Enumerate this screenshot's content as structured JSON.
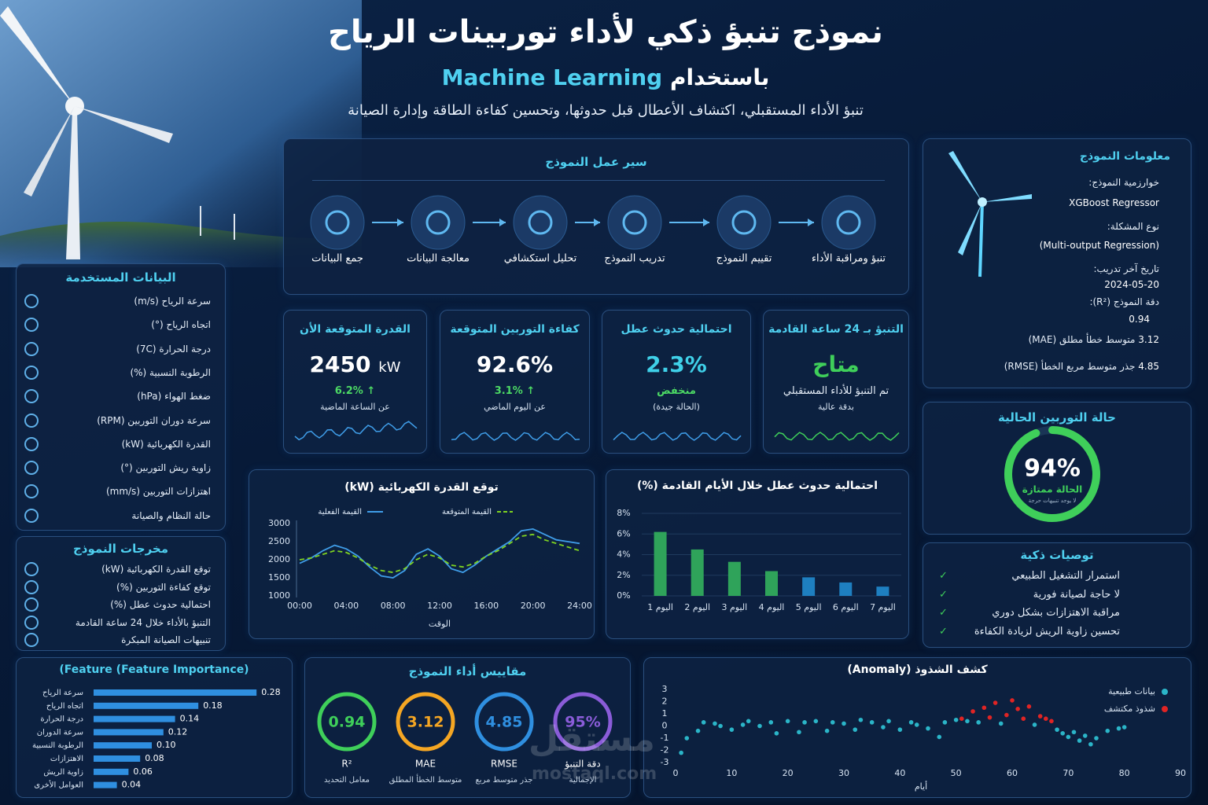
{
  "header": {
    "title": "نموذج تنبؤ ذكي لأداء توربينات الرياح",
    "subtitle_prefix": "باستخدام",
    "subtitle_highlight": "Machine Learning",
    "description": "تنبؤ الأداء المستقبلي، اكتشاف الأعطال قبل حدوثها، وتحسين كفاءة الطاقة وإدارة الصيانة"
  },
  "workflow": {
    "title": "سير عمل النموذج",
    "steps": [
      "جمع البيانات",
      "معالجة البيانات",
      "تحليل استكشافي",
      "تدريب النموذج",
      "تقييم النموذج",
      "تنبؤ ومراقبة الأداء"
    ]
  },
  "model_info": {
    "title": "معلومات النموذج",
    "items": [
      {
        "label": "خوارزمية النموذج:",
        "value": "XGBoost Regressor"
      },
      {
        "label": "نوع المشكلة:",
        "value": "(Multi-output Regression)"
      },
      {
        "label": "تاريخ آخر تدريب:",
        "value": "2024-05-20"
      },
      {
        "label": "دقة النموذج (R²):",
        "value": 0.94
      },
      {
        "label": "متوسط خطأ مطلق (MAE)",
        "value": 3.12
      },
      {
        "label": "جذر متوسط مربع الخطأ (RMSE)",
        "value": 4.85
      }
    ]
  },
  "data_used": {
    "title": "البيانات المستخدمة",
    "items": [
      "سرعة الرياح (m/s)",
      "اتجاه الرياح (°)",
      "درجة الحرارة (7C)",
      "الرطوبة النسبية (%)",
      "ضغط الهواء (hPa)",
      "سرعة دوران التوربين (RPM)",
      "القدرة الكهربائية (kW)",
      "زاوية ريش التوربين (°)",
      "اهتزازات التوربين (mm/s)",
      "حالة النظام والصيانة"
    ]
  },
  "outputs": {
    "title": "مخرجات النموذج",
    "items": [
      "توقع القدرة الكهربائية (kW)",
      "توقع كفاءة التوربين (%)",
      "احتمالية حدوث عطل (%)",
      "التنبؤ بالأداء خلال 24 ساعة القادمة",
      "تنبيهات الصيانة المبكرة"
    ]
  },
  "kpis": [
    {
      "title": "القدرة المتوقعة الأن",
      "value": 2450,
      "unit": "kW",
      "change": "↑ 6.2%",
      "note": "عن الساعة الماضية",
      "color": "#ffffff",
      "change_color": "#4cd964"
    },
    {
      "title": "كفاءة التوربين المتوقعة",
      "value": "92.6%",
      "change": "↑ 3.1%",
      "note": "عن اليوم الماضي",
      "color": "#ffffff",
      "change_color": "#4cd964"
    },
    {
      "title": "احتمالية حدوث عطل",
      "value": "2.3%",
      "change": "منخفض",
      "note": "(الحالة جيدة)",
      "color": "#3fd0e8",
      "change_color": "#4cd964"
    },
    {
      "title": "التنبؤ بـ 24 ساعة القادمة",
      "value": "متاح",
      "change": "تم التنبؤ للأداء المستقبلي",
      "note": "بدقة عالية",
      "color": "#3fcf5a",
      "change_color": "#e6eef8"
    }
  ],
  "status": {
    "title": "حالة التوربين الحالية",
    "value": 94,
    "value_label": "94%",
    "status": "الحالة ممتازة",
    "note": "لا يوجد تنبيهات حرجة",
    "color": "#3fcf5a"
  },
  "recommendations": {
    "title": "توصيات ذكية",
    "items": [
      "استمرار التشغيل الطبيعي",
      "لا حاجة لصيانة فورية",
      "مراقبة الاهتزازات بشكل دوري",
      "تحسين زاوية الريش لزيادة الكفاءة"
    ]
  },
  "metrics": {
    "title": "مقاييس أداء النموذج",
    "values": [
      0.94,
      3.12,
      4.85,
      95
    ],
    "value_labels": [
      "0.94",
      "3.12",
      "4.85",
      "95%"
    ],
    "names": [
      "R²",
      "MAE",
      "RMSE",
      "دقة التنبؤ"
    ],
    "descriptions": [
      "معامل التحديد",
      "متوسط الخطأ المطلق",
      "جذر متوسط مربع",
      "الإجمالية"
    ],
    "colors": [
      "#3fcf5a",
      "#f5a623",
      "#2f8fe0",
      "#8a5cd8"
    ]
  },
  "watermark": {
    "arabic": "مستقل",
    "latin": "mostaql.com"
  },
  "chart_data": [
    {
      "type": "line",
      "title": "توقع القدرة الكهربائية (kW)",
      "x_label": "الوقت",
      "x": [
        0,
        1,
        2,
        3,
        4,
        5,
        6,
        7,
        8,
        9,
        10,
        11,
        12,
        13,
        14,
        15,
        16,
        17,
        18,
        19,
        20,
        21,
        22,
        23,
        24
      ],
      "xlim": [
        0,
        24
      ],
      "xticks": [
        {
          "value": 0,
          "label": "00:00"
        },
        {
          "value": 4,
          "label": "04:00"
        },
        {
          "value": 8,
          "label": "08:00"
        },
        {
          "value": 12,
          "label": "12:00"
        },
        {
          "value": 16,
          "label": "16:00"
        },
        {
          "value": 20,
          "label": "20:00"
        },
        {
          "value": 24,
          "label": "24:00"
        }
      ],
      "ylim": [
        1000,
        3000
      ],
      "yticks": [
        1000,
        1500,
        2000,
        2500,
        3000
      ],
      "series": [
        {
          "name": "القيمة الفعلية",
          "color": "#3f9de8",
          "dashed": false,
          "values": [
            1900,
            2050,
            2250,
            2400,
            2300,
            2100,
            1800,
            1550,
            1500,
            1700,
            2150,
            2300,
            2100,
            1750,
            1650,
            1850,
            2100,
            2300,
            2500,
            2800,
            2850,
            2700,
            2550,
            2500,
            2450
          ]
        },
        {
          "name": "القيمة المتوقعة",
          "color": "#7ed321",
          "dashed": true,
          "values": [
            2000,
            2050,
            2150,
            2250,
            2200,
            2050,
            1850,
            1700,
            1650,
            1750,
            2000,
            2150,
            2050,
            1850,
            1800,
            1900,
            2100,
            2250,
            2450,
            2650,
            2700,
            2550,
            2450,
            2350,
            2250
          ]
        }
      ]
    },
    {
      "type": "bar",
      "title": "احتمالية حدوث عطل خلال الأيام القادمة (%)",
      "categories": [
        "اليوم 1",
        "اليوم 2",
        "اليوم 3",
        "اليوم 4",
        "اليوم 5",
        "اليوم 6",
        "اليوم 7"
      ],
      "values": [
        6.2,
        4.5,
        3.3,
        2.4,
        1.8,
        1.3,
        0.9
      ],
      "colors": [
        "#2fa35a",
        "#2fa35a",
        "#2fa35a",
        "#2fa35a",
        "#1e7fc0",
        "#1e7fc0",
        "#1e7fc0"
      ],
      "ylim": [
        0,
        8
      ],
      "yticks": [
        {
          "value": 0,
          "label": "0%"
        },
        {
          "value": 2,
          "label": "2%"
        },
        {
          "value": 4,
          "label": "4%"
        },
        {
          "value": 6,
          "label": "6%"
        },
        {
          "value": 8,
          "label": "8%"
        }
      ],
      "grid": true
    },
    {
      "type": "hbar",
      "title": "(Feature (Feature Importance)",
      "categories": [
        "سرعة الرياح",
        "اتجاه الرياح",
        "درجة الحرارة",
        "سرعة الدوران",
        "الرطوبة النسبية",
        "الاهتزازات",
        "زاوية الريش",
        "العوامل الأخرى"
      ],
      "values": [
        0.28,
        0.18,
        0.14,
        0.12,
        0.1,
        0.08,
        0.06,
        0.04
      ],
      "value_labels": [
        "0.28",
        "0.18",
        "0.14",
        "0.12",
        "0.10",
        "0.08",
        "0.06",
        "0.04"
      ],
      "color": "#2f8fe0",
      "xlim": [
        0,
        0.3
      ]
    },
    {
      "type": "scatter",
      "title": "كشف الشذوذ (Anomaly)",
      "x_label": "أيام",
      "xlim": [
        0,
        90
      ],
      "xticks": [
        0,
        10,
        20,
        30,
        40,
        50,
        60,
        70,
        80,
        90
      ],
      "ylim": [
        -3,
        3
      ],
      "yticks": [
        -3,
        -2,
        -1,
        0,
        1,
        2,
        3
      ],
      "series": [
        {
          "name": "بيانات طبيعية",
          "color": "#2bb5c8",
          "x": [
            1,
            2,
            4,
            5,
            7,
            8,
            10,
            12,
            13,
            15,
            17,
            18,
            20,
            22,
            23,
            25,
            27,
            28,
            30,
            32,
            33,
            35,
            37,
            38,
            40,
            42,
            43,
            45,
            47,
            48,
            50,
            52,
            54,
            58,
            64,
            68,
            69,
            70,
            71,
            72,
            73,
            74,
            75,
            77,
            79,
            80
          ],
          "values": [
            -2.2,
            -1.0,
            -0.4,
            0.3,
            0.2,
            0.0,
            -0.3,
            0.1,
            0.4,
            0.0,
            0.3,
            -0.6,
            0.4,
            -0.5,
            0.3,
            0.4,
            -0.4,
            0.3,
            0.2,
            -0.3,
            0.5,
            0.3,
            -0.1,
            0.4,
            -0.3,
            0.3,
            0.1,
            -0.2,
            -0.9,
            0.3,
            0.5,
            0.4,
            0.3,
            0.2,
            0.1,
            -0.3,
            -0.6,
            -0.9,
            -0.5,
            -1.2,
            -0.8,
            -1.5,
            -1.0,
            -0.4,
            -0.2,
            -0.1
          ]
        },
        {
          "name": "شذوذ مكتشف",
          "color": "#e02424",
          "x": [
            51,
            53,
            55,
            56,
            57,
            59,
            60,
            61,
            62,
            63,
            65,
            66,
            67
          ],
          "values": [
            0.6,
            1.2,
            1.5,
            0.7,
            1.9,
            0.9,
            2.1,
            1.4,
            0.6,
            1.6,
            0.8,
            0.6,
            0.4
          ]
        }
      ]
    }
  ]
}
